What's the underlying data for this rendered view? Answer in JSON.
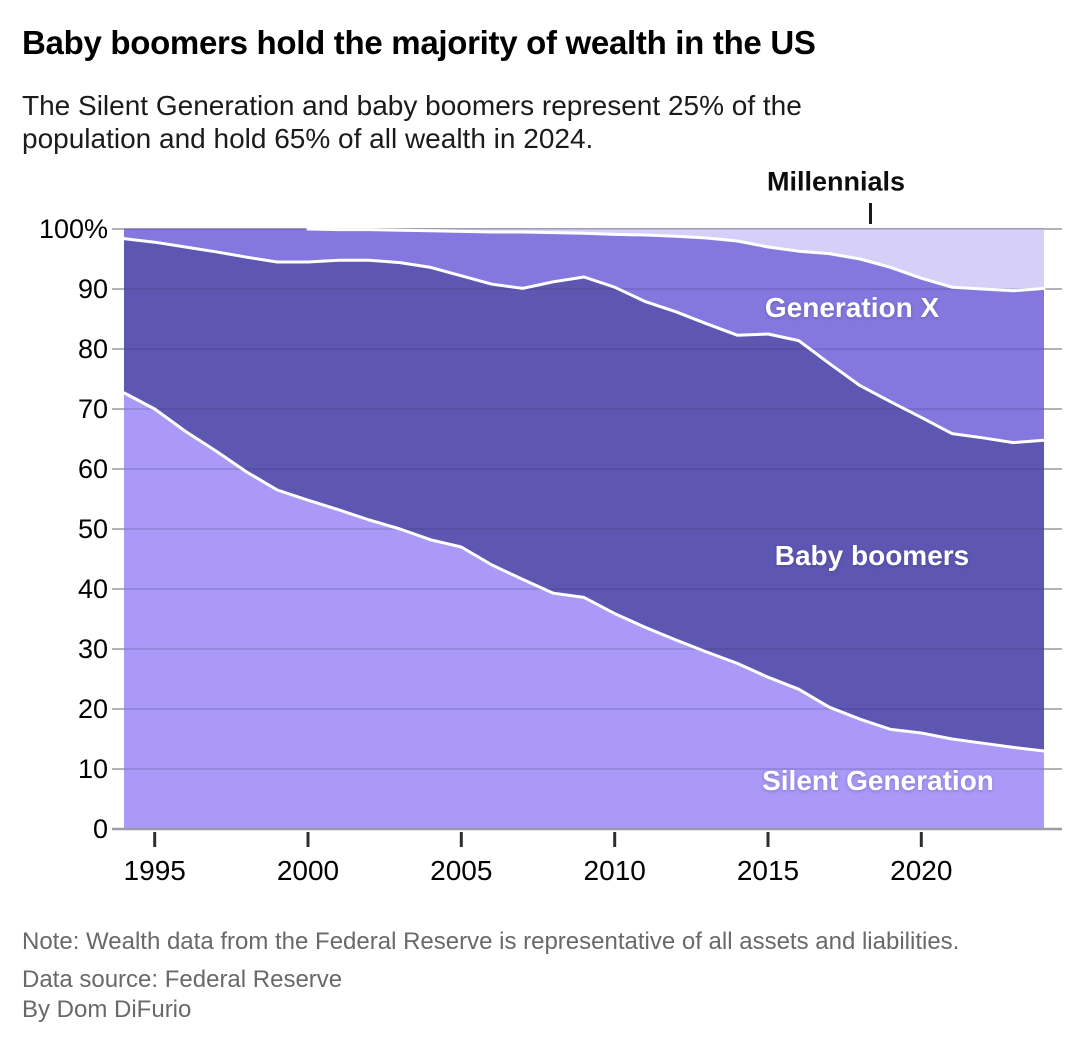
{
  "header": {
    "title": "Baby boomers hold the majority of wealth in the US",
    "subtitle_line1": "The Silent Generation and baby boomers represent 25% of the",
    "subtitle_line2": "population and hold 65% of all wealth in 2024."
  },
  "chart_data": {
    "type": "area",
    "stacked": true,
    "unit": "percent of total US wealth",
    "grid": "horizontal",
    "ylim": [
      0,
      100
    ],
    "x": [
      1994,
      1995,
      1996,
      1997,
      1998,
      1999,
      2000,
      2001,
      2002,
      2003,
      2004,
      2005,
      2006,
      2007,
      2008,
      2009,
      2010,
      2011,
      2012,
      2013,
      2014,
      2015,
      2016,
      2017,
      2018,
      2019,
      2020,
      2021,
      2022,
      2023,
      2024
    ],
    "series": [
      {
        "name": "Silent Generation",
        "color": "#aa99f7",
        "values": [
          72.7,
          70.0,
          66.3,
          63.0,
          59.5,
          56.5,
          54.8,
          53.2,
          51.5,
          50.0,
          48.2,
          47.0,
          44.0,
          41.6,
          39.3,
          38.6,
          35.9,
          33.6,
          31.5,
          29.5,
          27.6,
          25.3,
          23.3,
          20.3,
          18.3,
          16.6,
          16.0,
          15.0,
          14.3,
          13.6,
          13.0
        ]
      },
      {
        "name": "Baby boomers",
        "color": "#5e57b1",
        "values": [
          25.7,
          27.8,
          30.7,
          33.2,
          35.8,
          38.0,
          39.7,
          41.6,
          43.3,
          44.4,
          45.4,
          45.2,
          46.8,
          48.5,
          51.9,
          53.4,
          54.4,
          54.3,
          54.7,
          54.7,
          54.7,
          57.2,
          58.1,
          57.3,
          55.6,
          54.6,
          52.6,
          50.9,
          50.9,
          50.8,
          51.8
        ]
      },
      {
        "name": "Generation X",
        "color": "#8478de",
        "values": [
          1.6,
          2.2,
          3.0,
          3.8,
          4.7,
          5.5,
          5.5,
          5.1,
          5.1,
          5.4,
          6.1,
          7.4,
          8.7,
          9.4,
          8.2,
          7.3,
          8.8,
          11.1,
          12.6,
          14.3,
          15.7,
          14.5,
          14.9,
          18.3,
          21.1,
          22.4,
          23.2,
          24.4,
          24.8,
          25.3,
          25.3
        ]
      },
      {
        "name": "Millennials",
        "color": "#d6d0f8",
        "values": [
          0,
          0,
          0,
          0,
          0,
          0,
          0,
          0.1,
          0.1,
          0.2,
          0.3,
          0.4,
          0.5,
          0.5,
          0.6,
          0.7,
          0.9,
          1.0,
          1.2,
          1.5,
          2.0,
          3.0,
          3.7,
          4.1,
          5.0,
          6.4,
          8.2,
          9.7,
          10.0,
          10.3,
          9.9
        ]
      }
    ],
    "y_ticks": [
      {
        "v": 0,
        "label": "0"
      },
      {
        "v": 10,
        "label": "10"
      },
      {
        "v": 20,
        "label": "20"
      },
      {
        "v": 30,
        "label": "30"
      },
      {
        "v": 40,
        "label": "40"
      },
      {
        "v": 50,
        "label": "50"
      },
      {
        "v": 60,
        "label": "60"
      },
      {
        "v": 70,
        "label": "70"
      },
      {
        "v": 80,
        "label": "80"
      },
      {
        "v": 90,
        "label": "90"
      },
      {
        "v": 100,
        "label": "100%"
      }
    ],
    "x_ticks": [
      {
        "v": 1995,
        "label": "1995"
      },
      {
        "v": 2000,
        "label": "2000"
      },
      {
        "v": 2005,
        "label": "2005"
      },
      {
        "v": 2010,
        "label": "2010"
      },
      {
        "v": 2015,
        "label": "2015"
      },
      {
        "v": 2020,
        "label": "2020"
      }
    ]
  },
  "footer": {
    "note": "Note: Wealth data from the Federal Reserve is representative of all assets and liabilities.",
    "source": "Data source: Federal Reserve",
    "byline": "By Dom DiFurio"
  }
}
